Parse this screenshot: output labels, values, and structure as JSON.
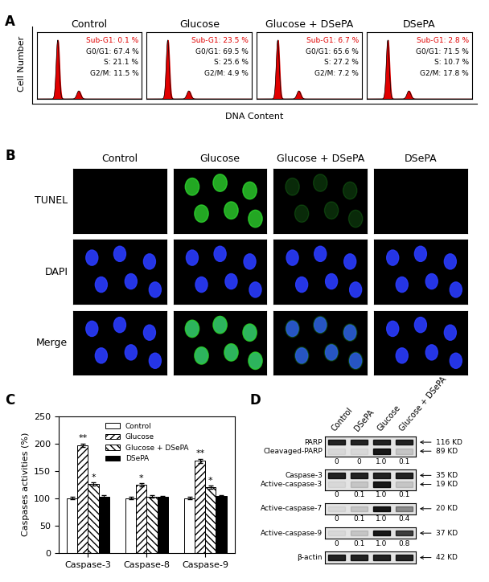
{
  "panel_a": {
    "label": "A",
    "y_label": "Cell Number",
    "x_label": "DNA Content",
    "panels": [
      {
        "title": "Control",
        "sub_g1": "Sub-G1: 0.1 %",
        "phases": [
          "G0/G1: 67.4 %",
          "S: 21.1 %",
          "G2/M: 11.5 %"
        ]
      },
      {
        "title": "Glucose",
        "sub_g1": "Sub-G1: 23.5 %",
        "phases": [
          "G0/G1: 69.5 %",
          "S: 25.6 %",
          "G2/M: 4.9 %"
        ]
      },
      {
        "title": "Glucose + DSePA",
        "sub_g1": "Sub-G1: 6.7 %",
        "phases": [
          "G0/G1: 65.6 %",
          "S: 27.2 %",
          "G2/M: 7.2 %"
        ]
      },
      {
        "title": "DSePA",
        "sub_g1": "Sub-G1: 2.8 %",
        "phases": [
          "G0/G1: 71.5 %",
          "S: 10.7 %",
          "G2/M: 17.8 %"
        ]
      }
    ]
  },
  "panel_b": {
    "label": "B",
    "columns": [
      "Control",
      "Glucose",
      "Glucose + DSePA",
      "DSePA"
    ],
    "rows": [
      "TUNEL",
      "DAPI",
      "Merge"
    ]
  },
  "panel_c_label": "C",
  "chart_data": {
    "type": "bar",
    "y_label": "Caspases activities (%)",
    "categories": [
      "Caspase-3",
      "Caspase-8",
      "Caspase-9"
    ],
    "series": [
      {
        "name": "Control",
        "color": "#ffffff",
        "values": [
          100,
          100,
          100
        ],
        "errors": [
          2,
          2,
          2
        ]
      },
      {
        "name": "Glucose",
        "color": "#ffffff",
        "values": [
          197,
          124,
          168
        ],
        "errors": [
          3,
          3,
          4
        ]
      },
      {
        "name": "Glucose + DSePA",
        "color": "#ffffff",
        "values": [
          126,
          103,
          120
        ],
        "errors": [
          3,
          2,
          3
        ]
      },
      {
        "name": "DSePA",
        "color": "#000000",
        "values": [
          103,
          102,
          104
        ],
        "errors": [
          2,
          2,
          2
        ]
      }
    ],
    "ylim": [
      0,
      250
    ],
    "yticks": [
      0,
      50,
      100,
      150,
      200,
      250
    ],
    "legend": "upper center",
    "grid": false,
    "annotations": [
      {
        "text": "**",
        "category": "Caspase-3",
        "series": "Glucose"
      },
      {
        "text": "*",
        "category": "Caspase-3",
        "series": "Glucose + DSePA"
      },
      {
        "text": "*",
        "category": "Caspase-8",
        "series": "Glucose"
      },
      {
        "text": "**",
        "category": "Caspase-9",
        "series": "Glucose"
      },
      {
        "text": "*",
        "category": "Caspase-9",
        "series": "Glucose + DSePA"
      }
    ]
  },
  "panel_d": {
    "label": "D",
    "lanes": [
      "Control",
      "DSePA",
      "Glucose",
      "Glucose + DSePA"
    ],
    "blots": [
      {
        "bands": [
          {
            "name": "PARP",
            "size": "116 KD"
          },
          {
            "name": "Cleavaged-PARP",
            "size": "89 KD",
            "quantification": [
              "0",
              "0",
              "1.0",
              "0.1"
            ]
          }
        ]
      },
      {
        "bands": [
          {
            "name": "Caspase-3",
            "size": "35 KD"
          },
          {
            "name": "Active-caspase-3",
            "size": "19 KD",
            "quantification": [
              "0",
              "0.1",
              "1.0",
              "0.1"
            ]
          }
        ]
      },
      {
        "bands": [
          {
            "name": "Active-caspase-7",
            "size": "20 KD",
            "quantification": [
              "0",
              "0.1",
              "1.0",
              "0.4"
            ]
          }
        ]
      },
      {
        "bands": [
          {
            "name": "Active-caspase-9",
            "size": "37 KD",
            "quantification": [
              "0",
              "0.1",
              "1.0",
              "0.8"
            ]
          }
        ]
      },
      {
        "bands": [
          {
            "name": "β-actin",
            "size": "42 KD"
          }
        ]
      }
    ]
  }
}
